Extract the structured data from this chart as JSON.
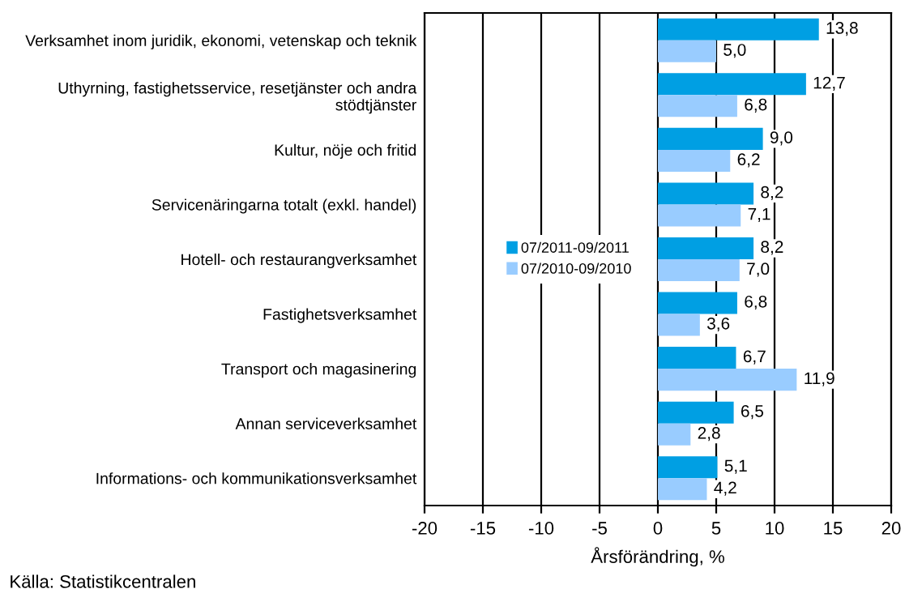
{
  "chart_data": {
    "type": "bar",
    "orientation": "horizontal",
    "xlabel": "Årsförändring, %",
    "categories": [
      "Verksamhet inom juridik, ekonomi, vetenskap och teknik",
      "Uthyrning, fastighetsservice, resetjänster och andra\nstödtjänster",
      "Kultur, nöje och fritid",
      "Servicenäringarna totalt (exkl. handel)",
      "Hotell- och restaurangverksamhet",
      "Fastighetsverksamhet",
      "Transport och magasinering",
      "Annan serviceverksamhet",
      "Informations- och kommunikationsverksamhet"
    ],
    "series": [
      {
        "name": "07/2011-09/2011",
        "color": "#009fe3",
        "values": [
          13.8,
          12.7,
          9.0,
          8.2,
          8.2,
          6.8,
          6.7,
          6.5,
          5.1
        ],
        "value_labels": [
          "13,8",
          "12,7",
          "9,0",
          "8,2",
          "8,2",
          "6,8",
          "6,7",
          "6,5",
          "5,1"
        ]
      },
      {
        "name": "07/2010-09/2010",
        "color": "#99ccff",
        "values": [
          5.0,
          6.8,
          6.2,
          7.1,
          7.0,
          3.6,
          11.9,
          2.8,
          4.2
        ],
        "value_labels": [
          "5,0",
          "6,8",
          "6,2",
          "7,1",
          "7,0",
          "3,6",
          "11,9",
          "2,8",
          "4,2"
        ]
      }
    ],
    "xlim": [
      -20,
      20
    ],
    "xticks": [
      -20,
      -15,
      -10,
      -5,
      0,
      5,
      10,
      15,
      20
    ],
    "grid": "x",
    "legend": "center left",
    "annotations": [
      "Källa: Statistikcentralen"
    ]
  }
}
